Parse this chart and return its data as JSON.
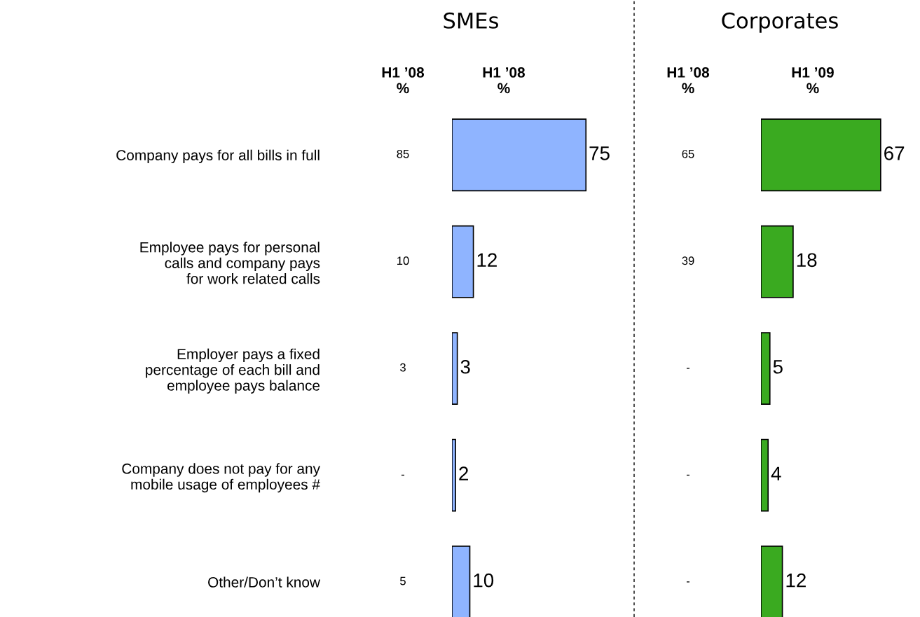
{
  "chart_data": [
    {
      "type": "other",
      "categories": [
        "Company pays for all bills in full",
        "Employee pays for personal\ncalls and company pays\nfor work related calls",
        "Employer pays a fixed\npercentage of each bill and\nemployee pays balance",
        "Company does not pay for any\nmobile usage of employees #",
        "Other/Don’t know"
      ],
      "series": [
        {
          "name": "H1 ’08\n%",
          "values": [
            85,
            10,
            3,
            null,
            5
          ],
          "value_labels": [
            "85",
            "10",
            "3",
            "-",
            "5"
          ]
        }
      ]
    },
    {
      "type": "bar",
      "orientation": "horizontal",
      "title": "SMEs",
      "categories": [
        null,
        null,
        null,
        null,
        null
      ],
      "data_labels": true,
      "series": [
        {
          "name": "H1 ’08\n%",
          "color": "#8fb4ff",
          "values": [
            75,
            12,
            3,
            2,
            10
          ]
        }
      ]
    },
    {
      "type": "other",
      "categories": [
        null,
        null,
        null,
        null,
        null
      ],
      "series": [
        {
          "name": "H1 ’08\n%",
          "values": [
            65,
            39,
            null,
            null,
            null
          ],
          "value_labels": [
            "65",
            "39",
            "-",
            "-",
            "-"
          ]
        }
      ]
    },
    {
      "type": "bar",
      "orientation": "horizontal",
      "title": "Corporates",
      "categories": [
        null,
        null,
        null,
        null,
        null
      ],
      "data_labels": true,
      "series": [
        {
          "name": "H1 ’09\n%",
          "color": "#3aaa20",
          "values": [
            67,
            18,
            5,
            4,
            12
          ]
        }
      ]
    }
  ]
}
